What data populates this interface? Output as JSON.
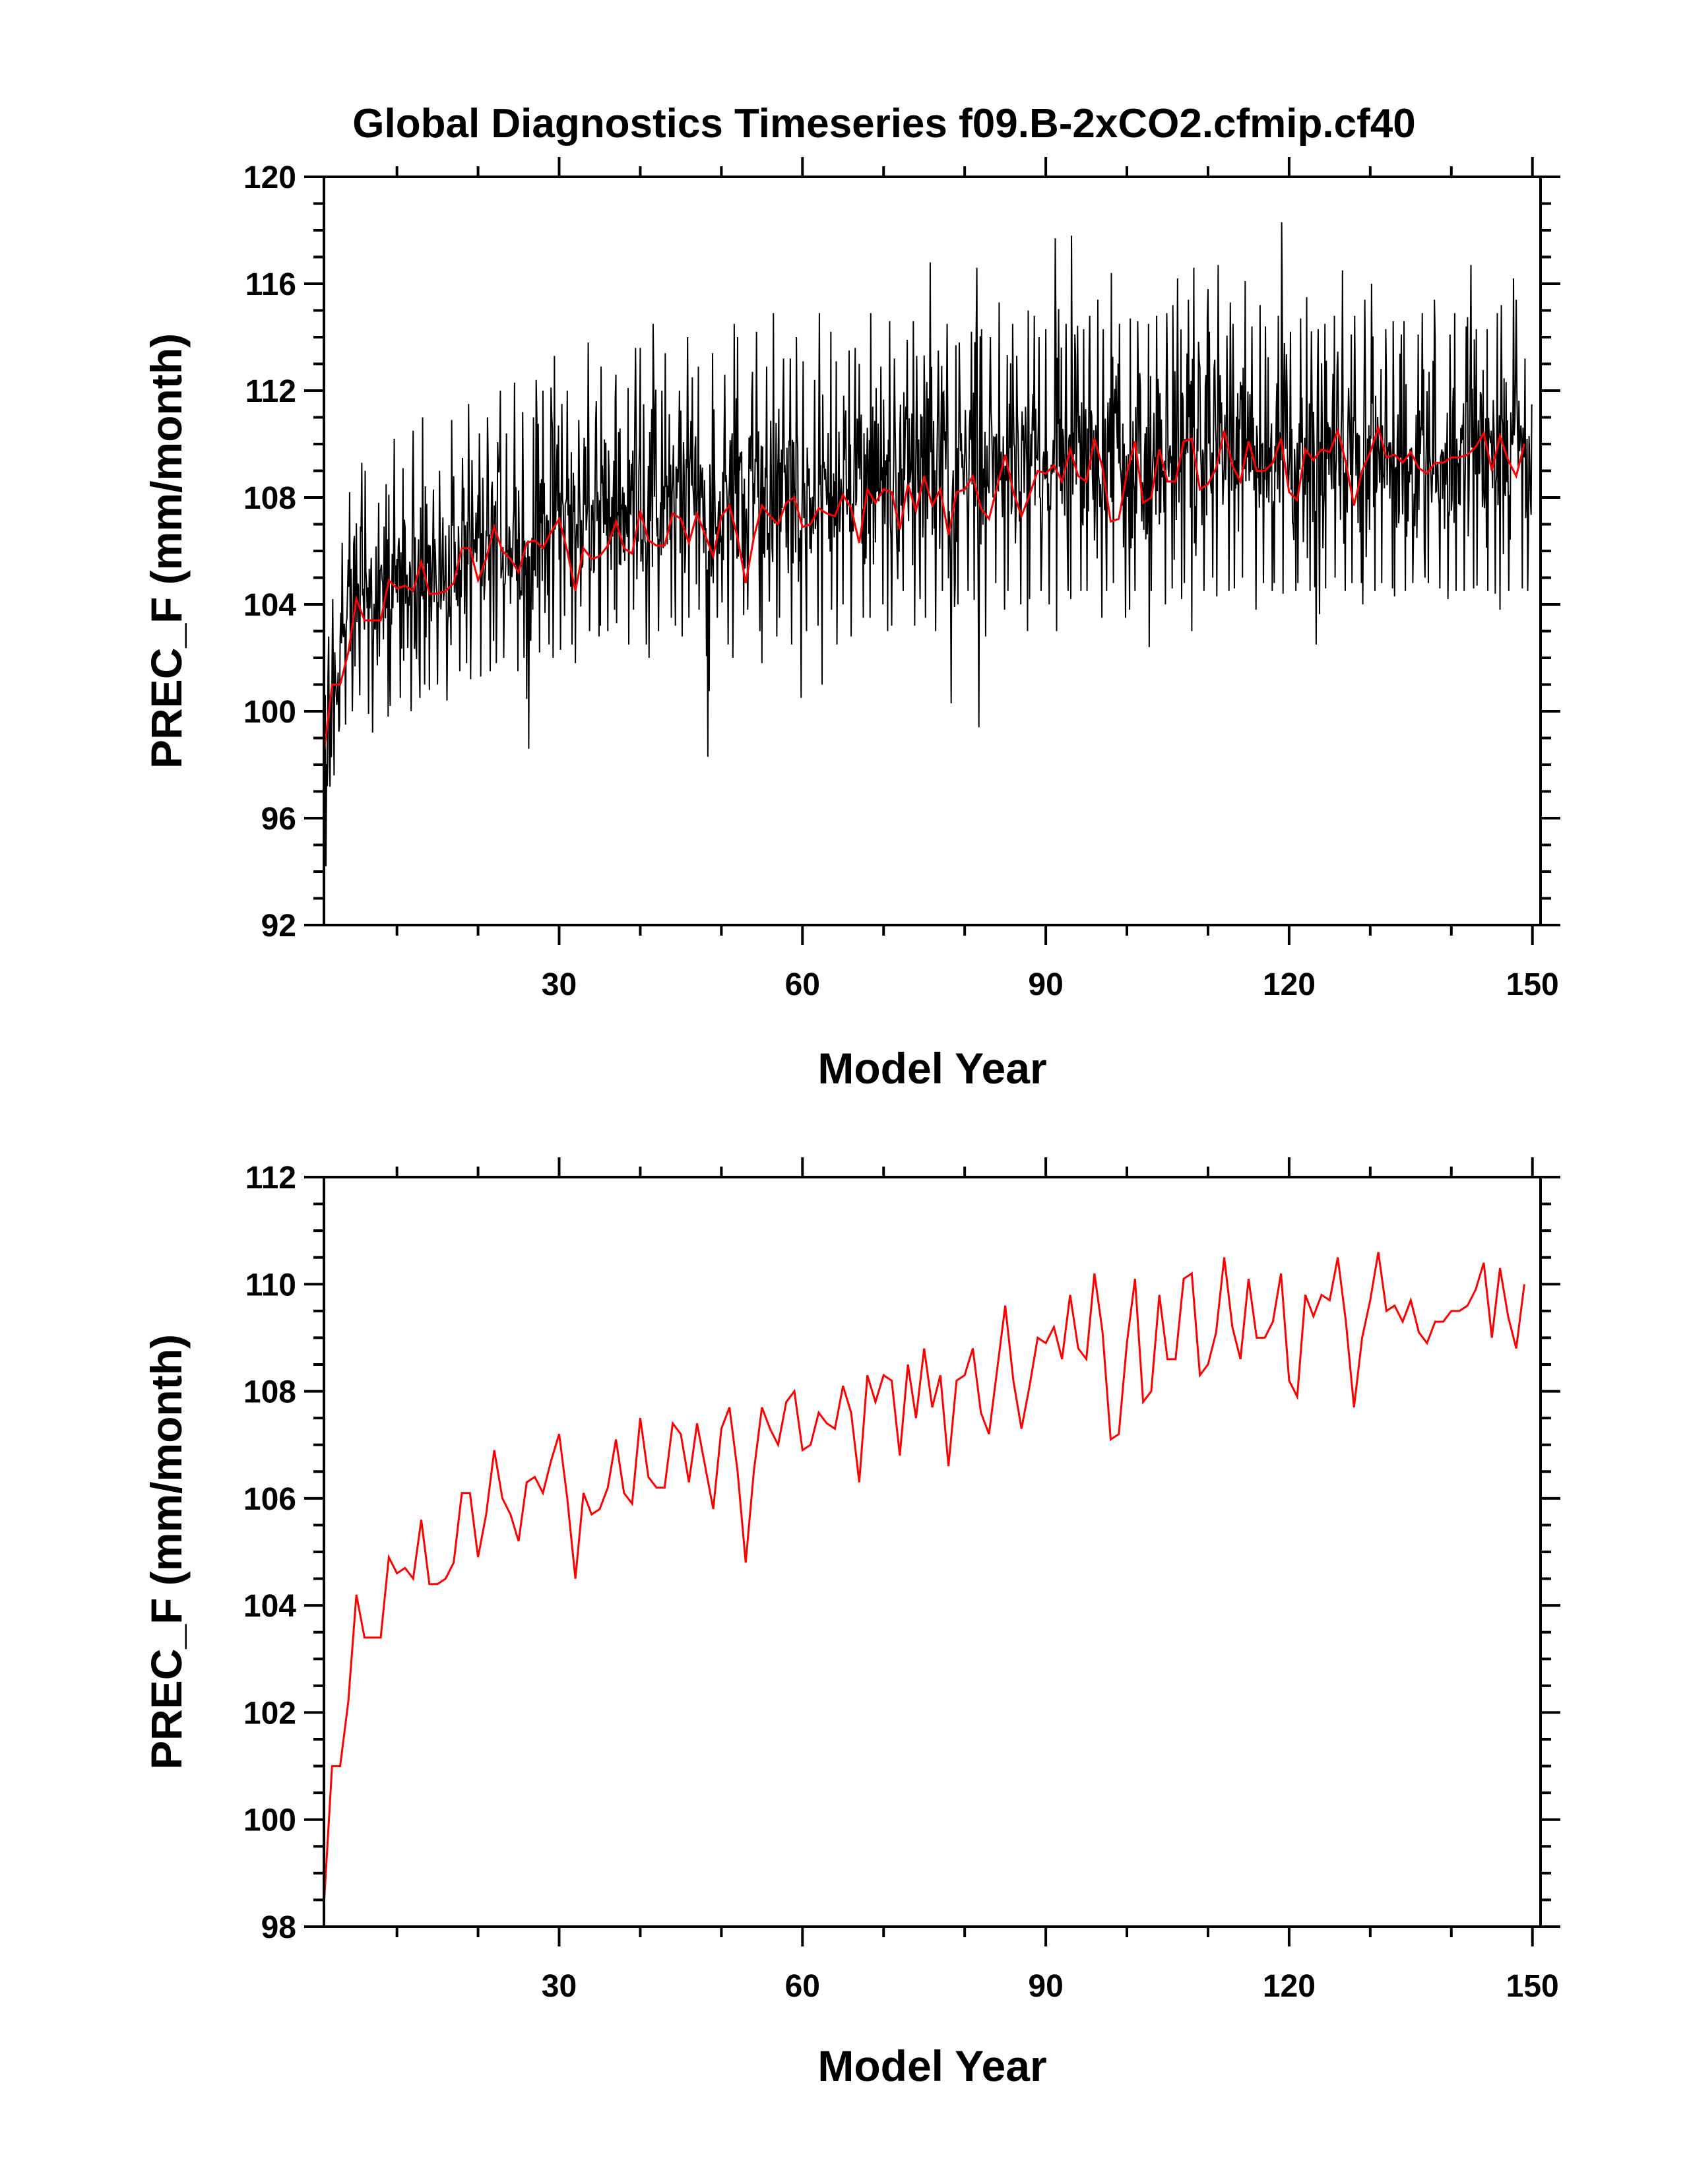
{
  "title": "Global Diagnostics Timeseries f09.B-2xCO2.cfmip.cf40",
  "chart_data": [
    {
      "type": "line",
      "xlabel": "Model Year",
      "ylabel": "PREC_F (mm/month)",
      "xlim": [
        1,
        151
      ],
      "ylim": [
        92,
        120
      ],
      "xticks": [
        30,
        60,
        90,
        120,
        150
      ],
      "yticks": [
        92,
        96,
        100,
        104,
        108,
        112,
        116,
        120
      ],
      "grid": false,
      "monthly_series": {
        "color": "#000000",
        "resolution": "monthly",
        "start_year": 1,
        "end_year": 151,
        "yearly_range_min": [
          94.2,
          97.6,
          99.5,
          100.0,
          100.6,
          99.9,
          99.2,
          99.8,
          100.2,
          100.5,
          100.0,
          100.5,
          101.0,
          100.8,
          101.0,
          100.4,
          101.5,
          101.8,
          101.2,
          101.3,
          101.5,
          101.8,
          102.0,
          101.5,
          102.0,
          98.6,
          102.2,
          102.5,
          102.0,
          102.3,
          102.5,
          101.8,
          103.0,
          102.8,
          103.2,
          103.0,
          103.3,
          102.5,
          103.8,
          102.5,
          102.0,
          103.0,
          103.5,
          103.2,
          102.8,
          103.5,
          103.8,
          98.3,
          103.5,
          102.5,
          102.0,
          103.6,
          103.8,
          103.0,
          101.8,
          102.8,
          103.5,
          102.5,
          100.5,
          103.0,
          103.2,
          101.0,
          103.8,
          102.5,
          104.0,
          102.8,
          103.5,
          103.5,
          104.0,
          103.0,
          103.2,
          104.5,
          103.2,
          104.2,
          103.5,
          103.0,
          104.5,
          100.3,
          104.0,
          104.5,
          99.4,
          102.8,
          104.8,
          103.8,
          104.5,
          104.0,
          103.0,
          104.2,
          104.5,
          104.0,
          103.0,
          104.5,
          104.2,
          104.5,
          104.5,
          103.5,
          104.5,
          104.8,
          103.5,
          103.8,
          104.5,
          102.4,
          104.5,
          104.0,
          104.6,
          104.2,
          104.8,
          103.0,
          104.5,
          105.0,
          104.3,
          104.5,
          104.6,
          105.0,
          103.8,
          104.8,
          104.5,
          104.8,
          104.4,
          104.5,
          104.8,
          104.5,
          102.5,
          104.6,
          105.0,
          104.5,
          104.8,
          104.8,
          104.0,
          104.5,
          104.8,
          104.6,
          104.3,
          104.5,
          104.8,
          105.0,
          104.8,
          104.6,
          104.2,
          104.5,
          104.5,
          104.6,
          104.7,
          104.5,
          104.4,
          103.8,
          104.5,
          104.6,
          104.5,
          105.0,
          105.2
        ],
        "yearly_range_max": [
          102.8,
          104.2,
          106.3,
          108.2,
          109.3,
          109.0,
          107.8,
          108.5,
          110.2,
          109.1,
          108.3,
          110.5,
          111.0,
          108.3,
          109.0,
          110.9,
          108.8,
          111.5,
          109.4,
          110.4,
          111.0,
          112.0,
          110.4,
          112.3,
          111.2,
          111.0,
          112.4,
          112.0,
          113.3,
          111.5,
          112.0,
          110.9,
          113.8,
          111.6,
          112.9,
          111.7,
          112.6,
          112.1,
          113.6,
          113.6,
          114.5,
          112.0,
          113.4,
          112.0,
          114.0,
          112.5,
          112.9,
          113.4,
          111.3,
          112.6,
          114.5,
          114.0,
          112.7,
          114.2,
          112.9,
          114.9,
          113.2,
          113.2,
          114.0,
          113.1,
          112.4,
          114.9,
          114.2,
          113.1,
          113.5,
          113.6,
          113.0,
          114.9,
          112.9,
          114.6,
          113.2,
          113.9,
          114.6,
          113.3,
          116.8,
          113.5,
          114.5,
          113.7,
          113.8,
          114.2,
          116.6,
          114.3,
          114.0,
          115.3,
          114.5,
          113.3,
          115.0,
          114.8,
          114.0,
          114.3,
          117.7,
          114.5,
          117.8,
          114.3,
          114.8,
          115.4,
          114.3,
          116.4,
          114.5,
          114.7,
          114.6,
          114.5,
          114.8,
          114.9,
          115.2,
          116.2,
          115.4,
          116.6,
          114.7,
          115.8,
          116.7,
          115.3,
          114.5,
          116.1,
          114.4,
          115.2,
          114.4,
          114.8,
          118.3,
          114.2,
          114.7,
          115.5,
          114.3,
          114.5,
          114.8,
          116.5,
          114.1,
          114.8,
          115.4,
          116.0,
          114.3,
          114.6,
          114.1,
          114.6,
          114.1,
          114.9,
          115.4,
          113.9,
          114.1,
          114.9,
          114.4,
          116.7,
          114.3,
          114.3,
          114.9,
          115.2,
          116.2,
          115.4,
          113.2
        ]
      },
      "annual_series": {
        "color": "#ff0000",
        "resolution": "annual",
        "x_start": 1,
        "values": [
          98.4,
          101.0,
          101.0,
          102.2,
          104.2,
          103.4,
          103.4,
          103.4,
          104.9,
          104.6,
          104.7,
          104.5,
          105.6,
          104.4,
          104.4,
          104.5,
          104.8,
          106.1,
          106.1,
          104.9,
          105.7,
          106.9,
          106.0,
          105.7,
          105.2,
          106.3,
          106.4,
          106.1,
          106.7,
          107.2,
          106.0,
          104.5,
          106.1,
          105.7,
          105.8,
          106.2,
          107.1,
          106.1,
          105.9,
          107.5,
          106.4,
          106.2,
          106.2,
          107.4,
          107.2,
          106.3,
          107.4,
          106.6,
          105.8,
          107.3,
          107.7,
          106.5,
          104.8,
          106.5,
          107.7,
          107.3,
          107.0,
          107.8,
          108.0,
          106.9,
          107.0,
          107.6,
          107.4,
          107.3,
          108.1,
          107.6,
          106.3,
          108.3,
          107.8,
          108.3,
          108.2,
          106.8,
          108.5,
          107.5,
          108.8,
          107.7,
          108.3,
          106.6,
          108.2,
          108.3,
          108.8,
          107.6,
          107.2,
          108.4,
          109.6,
          108.2,
          107.3,
          108.1,
          109.0,
          108.9,
          109.2,
          108.6,
          109.8,
          108.8,
          108.6,
          110.2,
          109.1,
          107.1,
          107.2,
          108.9,
          110.1,
          107.8,
          108.0,
          109.8,
          108.6,
          108.6,
          110.1,
          110.2,
          108.3,
          108.5,
          109.1,
          110.5,
          109.2,
          108.6,
          110.1,
          109.0,
          109.0,
          109.3,
          110.2,
          108.2,
          107.9,
          109.8,
          109.4,
          109.8,
          109.7,
          110.5,
          109.3,
          107.7,
          109.0,
          109.7,
          110.6,
          109.5,
          109.6,
          109.3,
          109.7,
          109.1,
          108.9,
          109.3,
          109.3,
          109.5,
          109.5,
          109.6,
          109.9,
          110.4,
          109.0,
          110.3,
          109.4,
          108.8,
          110.0
        ]
      }
    },
    {
      "type": "line",
      "xlabel": "Model Year",
      "ylabel": "PREC_F (mm/month)",
      "xlim": [
        1,
        151
      ],
      "ylim": [
        98,
        112
      ],
      "xticks": [
        30,
        60,
        90,
        120,
        150
      ],
      "yticks": [
        98,
        100,
        102,
        104,
        106,
        108,
        110,
        112
      ],
      "grid": false,
      "annual_series": {
        "color": "#ff0000",
        "resolution": "annual",
        "x_start": 1,
        "same_as_panel": 0
      }
    }
  ]
}
